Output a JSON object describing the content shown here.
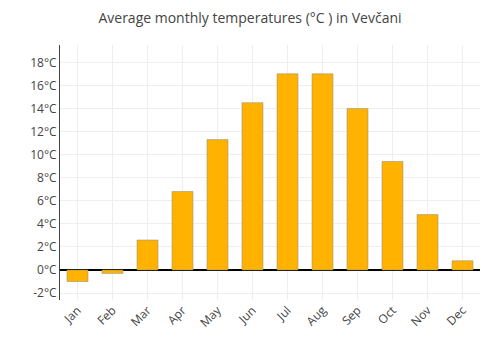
{
  "chart_data": {
    "type": "bar",
    "title": "Average monthly temperatures (°C ) in Vevčani",
    "categories": [
      "Jan",
      "Feb",
      "Mar",
      "Apr",
      "May",
      "Jun",
      "Jul",
      "Aug",
      "Sep",
      "Oct",
      "Nov",
      "Dec"
    ],
    "values": [
      -1.0,
      -0.3,
      2.6,
      6.8,
      11.3,
      14.5,
      17.0,
      17.0,
      14.0,
      9.4,
      4.8,
      0.8
    ],
    "color": "#FFB300",
    "ylim": [
      -2.6,
      19.5
    ],
    "yticks": [
      {
        "value": -2,
        "label": "-2°C"
      },
      {
        "value": 0,
        "label": "0°C"
      },
      {
        "value": 2,
        "label": "2°C"
      },
      {
        "value": 4,
        "label": "4°C"
      },
      {
        "value": 6,
        "label": "6°C"
      },
      {
        "value": 8,
        "label": "8°C"
      },
      {
        "value": 10,
        "label": "10°C"
      },
      {
        "value": 12,
        "label": "12°C"
      },
      {
        "value": 14,
        "label": "14°C"
      },
      {
        "value": 16,
        "label": "16°C"
      },
      {
        "value": 18,
        "label": "18°C"
      }
    ],
    "grid": true
  }
}
